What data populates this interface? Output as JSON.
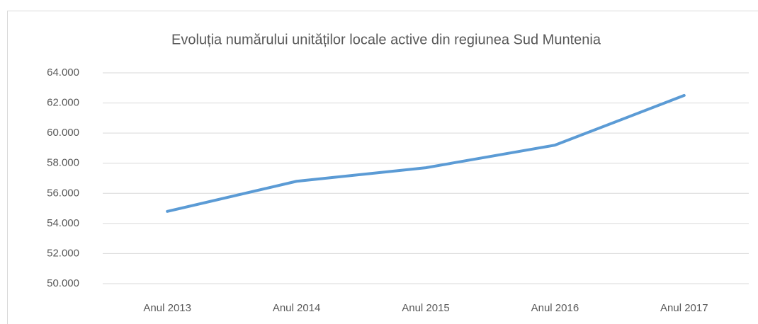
{
  "chart_data": {
    "type": "line",
    "title": "Evoluția numărului unităților locale active din regiunea Sud Muntenia",
    "categories": [
      "Anul 2013",
      "Anul 2014",
      "Anul 2015",
      "Anul 2016",
      "Anul 2017"
    ],
    "values": [
      54800,
      56800,
      57700,
      59200,
      62500
    ],
    "color": "#5b9bd5",
    "ylim": [
      50000,
      64000
    ],
    "yticks": [
      {
        "value": 50000,
        "label": "50.000"
      },
      {
        "value": 52000,
        "label": "52.000"
      },
      {
        "value": 54000,
        "label": "54.000"
      },
      {
        "value": 56000,
        "label": "56.000"
      },
      {
        "value": 58000,
        "label": "58.000"
      },
      {
        "value": 60000,
        "label": "60.000"
      },
      {
        "value": 62000,
        "label": "62.000"
      },
      {
        "value": 64000,
        "label": "64.000"
      }
    ],
    "grid": true
  }
}
